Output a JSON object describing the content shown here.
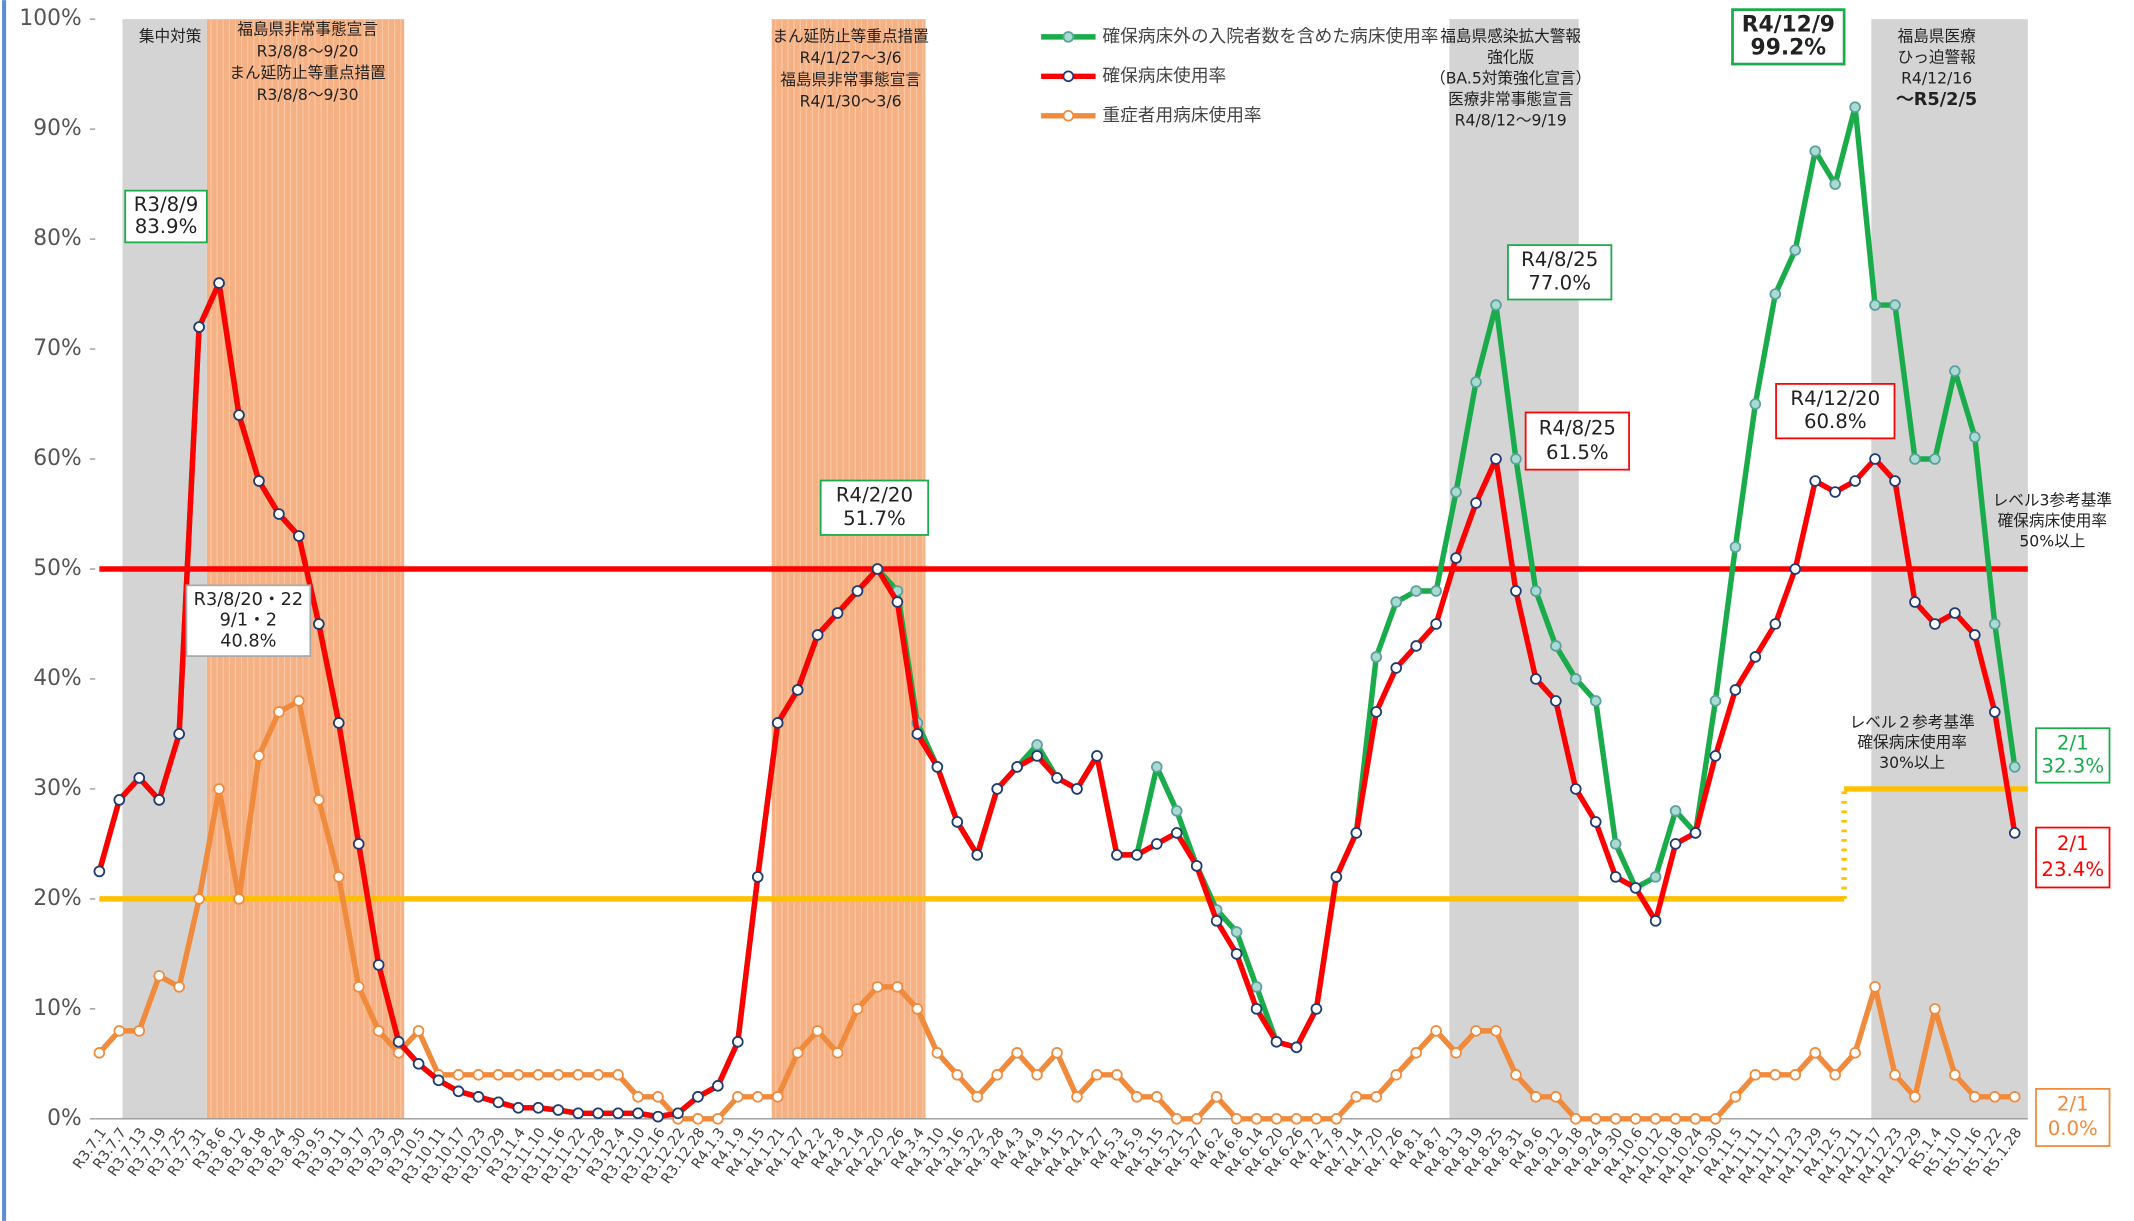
{
  "chart_data": {
    "type": "line",
    "categories": [
      "R3.7.1",
      "R3.7.7",
      "R3.7.13",
      "R3.7.19",
      "R3.7.25",
      "R3.7.31",
      "R3.8.6",
      "R3.8.12",
      "R3.8.18",
      "R3.8.24",
      "R3.8.30",
      "R3.9.5",
      "R3.9.11",
      "R3.9.17",
      "R3.9.23",
      "R3.9.29",
      "R3.10.5",
      "R3.10.11",
      "R3.10.17",
      "R3.10.23",
      "R3.10.29",
      "R3.11.4",
      "R3.11.10",
      "R3.11.16",
      "R3.11.22",
      "R3.11.28",
      "R3.12.4",
      "R3.12.10",
      "R3.12.16",
      "R3.12.22",
      "R3.12.28",
      "R4.1.3",
      "R4.1.9",
      "R4.1.15",
      "R4.1.21",
      "R4.1.27",
      "R4.2.2",
      "R4.2.8",
      "R4.2.14",
      "R4.2.20",
      "R4.2.26",
      "R4.3.4",
      "R4.3.10",
      "R4.3.16",
      "R4.3.22",
      "R4.3.28",
      "R4.4.3",
      "R4.4.9",
      "R4.4.15",
      "R4.4.21",
      "R4.4.27",
      "R4.5.3",
      "R4.5.9",
      "R4.5.15",
      "R4.5.21",
      "R4.5.27",
      "R4.6.2",
      "R4.6.8",
      "R4.6.14",
      "R4.6.20",
      "R4.6.26",
      "R4.7.2",
      "R4.7.8",
      "R4.7.14",
      "R4.7.20",
      "R4.7.26",
      "R4.8.1",
      "R4.8.7",
      "R4.8.13",
      "R4.8.19",
      "R4.8.25",
      "R4.8.31",
      "R4.9.6",
      "R4.9.12",
      "R4.9.18",
      "R4.9.24",
      "R4.9.30",
      "R4.10.6",
      "R4.10.12",
      "R4.10.18",
      "R4.10.24",
      "R4.10.30",
      "R4.11.5",
      "R4.11.11",
      "R4.11.17",
      "R4.11.23",
      "R4.11.29",
      "R4.12.5",
      "R4.12.11",
      "R4.12.17",
      "R4.12.23",
      "R4.12.29",
      "R5.1.4",
      "R5.1.10",
      "R5.1.16",
      "R5.1.22",
      "R5.1.28"
    ],
    "series": [
      {
        "name": "確保病床外の入院者数を含めた病床使用率",
        "color": "#1aab4a",
        "marker_fill": "#a8dcd1",
        "marker_stroke": "#5e9fa0",
        "values": [
          22.5,
          29,
          31,
          29,
          35,
          72,
          76,
          64,
          58,
          55,
          53,
          45,
          36,
          25,
          14,
          7,
          5,
          3.5,
          2.5,
          2,
          1.5,
          1,
          1,
          0.8,
          0.5,
          0.5,
          0.5,
          0.5,
          0.2,
          0.5,
          2,
          3,
          7,
          22,
          36,
          39,
          44,
          46,
          48,
          50,
          48,
          36,
          32,
          27,
          24,
          30,
          32,
          34,
          31,
          30,
          33,
          24,
          24,
          32,
          28,
          23,
          19,
          17,
          12,
          7,
          6.5,
          10,
          22,
          26,
          42,
          47,
          48,
          48,
          57,
          67,
          74,
          60,
          48,
          43,
          40,
          38,
          25,
          21,
          22,
          28,
          26,
          38,
          52,
          65,
          75,
          79,
          88,
          85,
          92,
          74,
          74,
          60,
          60,
          68,
          62,
          45,
          32
        ]
      },
      {
        "name": "確保病床使用率",
        "color": "#ff0000",
        "marker_fill": "#ffffff",
        "marker_stroke": "#1f3b70",
        "values": [
          22.5,
          29,
          31,
          29,
          35,
          72,
          76,
          64,
          58,
          55,
          53,
          45,
          36,
          25,
          14,
          7,
          5,
          3.5,
          2.5,
          2,
          1.5,
          1,
          1,
          0.8,
          0.5,
          0.5,
          0.5,
          0.5,
          0.2,
          0.5,
          2,
          3,
          7,
          22,
          36,
          39,
          44,
          46,
          48,
          50,
          47,
          35,
          32,
          27,
          24,
          30,
          32,
          33,
          31,
          30,
          33,
          24,
          24,
          25,
          26,
          23,
          18,
          15,
          10,
          7,
          6.5,
          10,
          22,
          26,
          37,
          41,
          43,
          45,
          51,
          56,
          60,
          48,
          40,
          38,
          30,
          27,
          22,
          21,
          18,
          25,
          26,
          33,
          39,
          42,
          45,
          50,
          58,
          57,
          58,
          60,
          58,
          47,
          45,
          46,
          44,
          37,
          26
        ]
      },
      {
        "name": "重症者用病床使用率",
        "color": "#f08a3c",
        "marker_fill": "#ffffff",
        "marker_stroke": "#f08a3c",
        "values": [
          6,
          8,
          8,
          13,
          12,
          20,
          30,
          20,
          33,
          37,
          38,
          29,
          22,
          12,
          8,
          6,
          8,
          4,
          4,
          4,
          4,
          4,
          4,
          4,
          4,
          4,
          4,
          2,
          2,
          0,
          0,
          0,
          2,
          2,
          2,
          6,
          8,
          6,
          10,
          12,
          12,
          10,
          6,
          4,
          2,
          4,
          6,
          4,
          6,
          2,
          4,
          4,
          2,
          2,
          0,
          0,
          2,
          0,
          0,
          0,
          0,
          0,
          0,
          2,
          2,
          4,
          6,
          8,
          6,
          8,
          8,
          4,
          2,
          2,
          0,
          0,
          0,
          0,
          0,
          0,
          0,
          0,
          2,
          4,
          4,
          4,
          6,
          4,
          6,
          12,
          4,
          2,
          10,
          4,
          2,
          2,
          2
        ]
      }
    ],
    "ylim": [
      0,
      100
    ],
    "yticks": [
      {
        "value": 0,
        "label": "0%"
      },
      {
        "value": 10,
        "label": "10%"
      },
      {
        "value": 20,
        "label": "20%"
      },
      {
        "value": 30,
        "label": "30%"
      },
      {
        "value": 40,
        "label": "40%"
      },
      {
        "value": 50,
        "label": "50%"
      },
      {
        "value": 60,
        "label": "60%"
      },
      {
        "value": 70,
        "label": "70%"
      },
      {
        "value": 80,
        "label": "80%"
      },
      {
        "value": 90,
        "label": "90%"
      },
      {
        "value": 100,
        "label": "100%"
      }
    ],
    "grid": false,
    "reference_lines": [
      {
        "value": 50,
        "color": "#ff0000",
        "label": [
          "レベル3参考基準",
          "確保病床使用率",
          "50%以上"
        ]
      },
      {
        "value": 20,
        "color": "#ffc000"
      },
      {
        "value": 30,
        "color": "#ffc000",
        "label": [
          "レベル２参考基準",
          "確保病床使用率",
          "30%以上"
        ]
      }
    ],
    "bands": [
      {
        "color": "#d4d4d4",
        "label": [
          "集中対策"
        ]
      },
      {
        "color": "#f5b183",
        "label": [
          "福島県非常事態宣言",
          "R3/8/8～9/20",
          "まん延防止等重点措置",
          "R3/8/8～9/30"
        ]
      },
      {
        "color": "#f5b183",
        "label": [
          "まん延防止等重点措置",
          "R4/1/27～3/6",
          "福島県非常事態宣言",
          "R4/1/30～3/6"
        ]
      },
      {
        "color": "#d4d4d4",
        "label": [
          "福島県感染拡大警報",
          "強化版",
          "（BA.5対策強化宣言）",
          "医療非常事態宣言",
          "R4/8/12～9/19"
        ]
      },
      {
        "color": "#d4d4d4",
        "label": [
          "福島県医療",
          "ひっ迫警報",
          "R4/12/16",
          "～R5/2/5"
        ]
      }
    ],
    "annotations": [
      {
        "lines": [
          "R3/8/9",
          "83.9%"
        ],
        "color": "#1aab4a"
      },
      {
        "lines": [
          "R3/8/20・22",
          "9/1・2",
          "40.8%"
        ],
        "color": "#aaaaaa"
      },
      {
        "lines": [
          "R4/2/20",
          "51.7%"
        ],
        "color": "#1aab4a"
      },
      {
        "lines": [
          "R4/8/25",
          "77.0%"
        ],
        "color": "#1aab4a"
      },
      {
        "lines": [
          "R4/8/25",
          "61.5%"
        ],
        "color": "#ff0000"
      },
      {
        "lines": [
          "R4/12/9",
          "99.2%"
        ],
        "color": "#1aab4a"
      },
      {
        "lines": [
          "R4/12/20",
          "60.8%"
        ],
        "color": "#ff0000"
      },
      {
        "lines": [
          "2/1",
          "32.3%"
        ],
        "color": "#1aab4a"
      },
      {
        "lines": [
          "2/1",
          "23.4%"
        ],
        "color": "#ff0000"
      },
      {
        "lines": [
          "2/1",
          "0.0%"
        ],
        "color": "#f08a3c"
      }
    ]
  }
}
